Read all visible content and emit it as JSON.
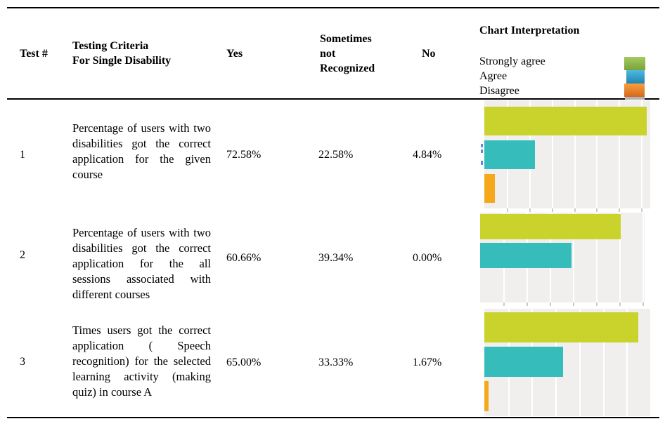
{
  "header": {
    "test_label": "Test #",
    "criteria_label": "Testing Criteria\nFor Single Disability",
    "yes_label": "Yes",
    "sometimes_label": "Sometimes\nnot\nRecognized",
    "no_label": "No",
    "chart_label": "Chart Interpretation"
  },
  "rows": [
    {
      "test_no": "1",
      "criteria": "Percentage of users with two disabilities got the correct application for the given course",
      "yes": "72.58%",
      "sometimes": "22.58%",
      "no": "4.84%"
    },
    {
      "test_no": "2",
      "criteria": "Percentage of users with two disabilities got the correct application for the all sessions associated with different courses",
      "yes": "60.66%",
      "sometimes": "39.34%",
      "no": "0.00%"
    },
    {
      "test_no": "3",
      "criteria": "Times users got the correct application ( Speech recognition) for the selected learning activity (making quiz) in course A",
      "yes": "65.00%",
      "sometimes": "33.33%",
      "no": "1.67%"
    }
  ],
  "chart_data": {
    "type": "bar",
    "orientation": "horizontal",
    "title": "Chart Interpretation",
    "legend_position": "top-right",
    "legend": [
      {
        "label": "Strongly agree",
        "color": "#8cb93f"
      },
      {
        "label": "Agree",
        "color": "#2f9fc6"
      },
      {
        "label": "Disagree",
        "color": "#ed8022"
      }
    ],
    "bar_colors": {
      "strongly_agree": "#c9d32b",
      "agree": "#35bcbb",
      "disagree": "#f6a81c"
    },
    "plot_background": "#f0efee",
    "gridline_color": "#ffffff",
    "charts": [
      {
        "row": "1",
        "grid_interval": 10,
        "xmax": 74,
        "series": [
          {
            "name": "Strongly agree",
            "value": 72.58
          },
          {
            "name": "Agree",
            "value": 22.58
          },
          {
            "name": "Disagree",
            "value": 4.84
          }
        ]
      },
      {
        "row": "2",
        "grid_interval": 10,
        "xmax": 71,
        "series": [
          {
            "name": "Strongly agree",
            "value": 60.66
          },
          {
            "name": "Agree",
            "value": 39.34
          },
          {
            "name": "Disagree",
            "value": 0.0
          }
        ]
      },
      {
        "row": "3",
        "grid_interval": 10,
        "xmax": 70,
        "series": [
          {
            "name": "Strongly agree",
            "value": 65.0
          },
          {
            "name": "Agree",
            "value": 33.33
          },
          {
            "name": "Disagree",
            "value": 1.67
          }
        ]
      }
    ]
  }
}
